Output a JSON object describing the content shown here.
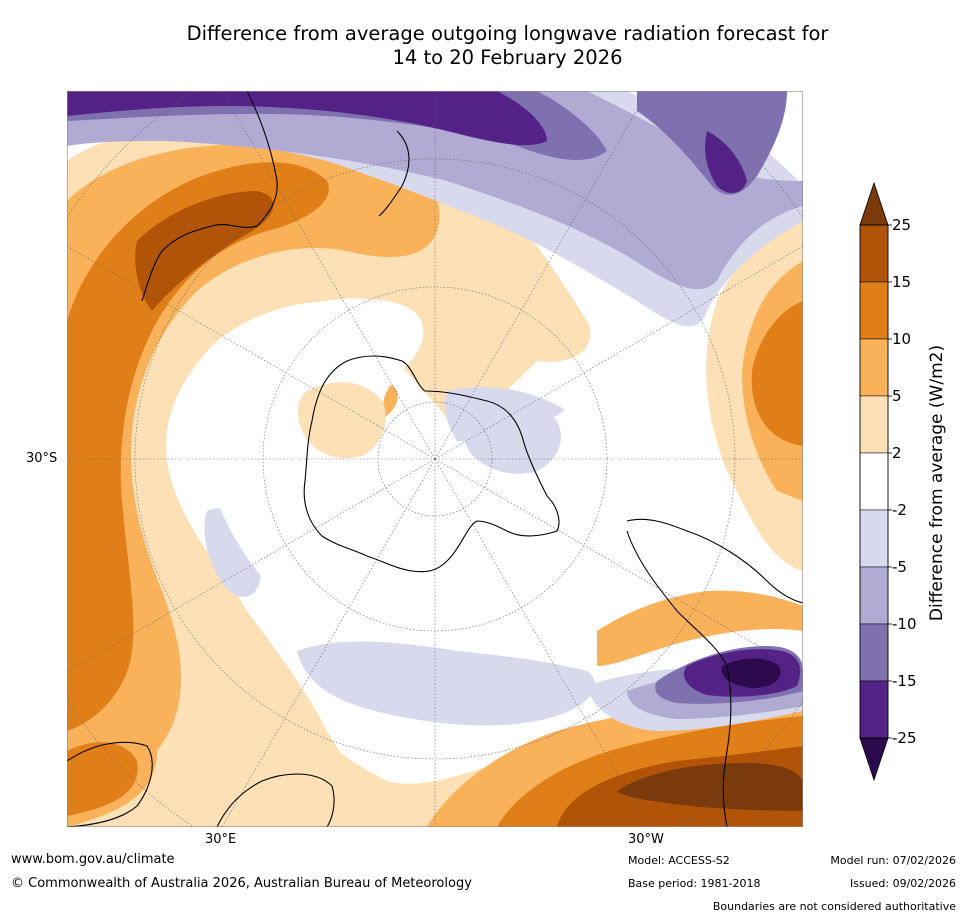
{
  "title_line1": "Difference from average outgoing longwave radiation forecast for",
  "title_line2": "14 to 20 February 2026",
  "axis_labels": {
    "lat": "30°S",
    "lon_east": "30°E",
    "lon_west": "30°W"
  },
  "colorbar": {
    "label": "Difference from average (W/m2)",
    "ticks": [
      "25",
      "15",
      "10",
      "5",
      "2",
      "-2",
      "-5",
      "-10",
      "-15",
      "-25"
    ],
    "colors": [
      "#7b3a0c",
      "#b15408",
      "#e07e17",
      "#f9b25a",
      "#fde0b6",
      "#ffffff",
      "#d8d9ec",
      "#b1abd3",
      "#7f71b0",
      "#542286",
      "#2d0a4d"
    ]
  },
  "footer": {
    "website": "www.bom.gov.au/climate",
    "copyright": "© Commonwealth of Australia 2026, Australian Bureau of Meteorology",
    "model": "Model: ACCESS-S2",
    "base_period": "Base period: 1981-2018",
    "model_run": "Model run: 07/02/2026",
    "issued": "Issued: 09/02/2026",
    "disclaimer": "Boundaries are not considered authoritative"
  }
}
